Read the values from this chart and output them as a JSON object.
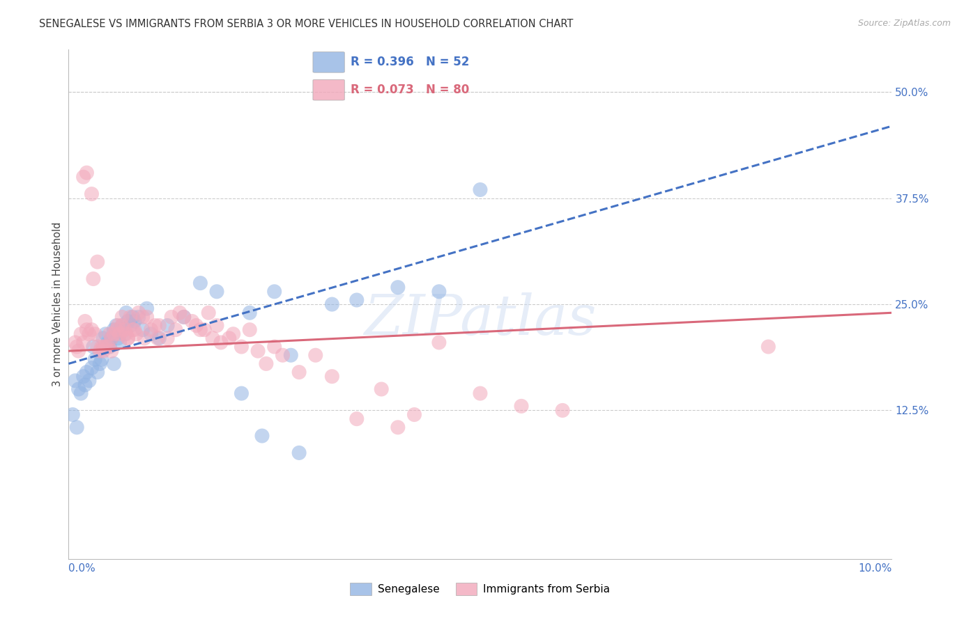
{
  "title": "SENEGALESE VS IMMIGRANTS FROM SERBIA 3 OR MORE VEHICLES IN HOUSEHOLD CORRELATION CHART",
  "source": "Source: ZipAtlas.com",
  "ylabel": "3 or more Vehicles in Household",
  "blue_label": "Senegalese",
  "pink_label": "Immigrants from Serbia",
  "blue_r": "R = 0.396",
  "blue_n": "N = 52",
  "pink_r": "R = 0.073",
  "pink_n": "N = 80",
  "blue_fill": "#92b4e3",
  "pink_fill": "#f2a8bb",
  "blue_line": "#4472c4",
  "pink_line": "#d9687a",
  "watermark_color": "#c8d8f0",
  "xmin": 0.0,
  "xmax": 10.0,
  "ymin": -5.0,
  "ymax": 55.0,
  "ytick_vals": [
    12.5,
    25.0,
    37.5,
    50.0
  ],
  "grid_color": "#cccccc",
  "background_color": "#ffffff",
  "blue_scatter_x": [
    0.08,
    0.12,
    0.15,
    0.18,
    0.2,
    0.22,
    0.25,
    0.28,
    0.3,
    0.32,
    0.35,
    0.38,
    0.4,
    0.42,
    0.45,
    0.48,
    0.5,
    0.52,
    0.55,
    0.58,
    0.6,
    0.62,
    0.65,
    0.68,
    0.7,
    0.72,
    0.75,
    0.78,
    0.8,
    0.85,
    0.9,
    0.95,
    1.0,
    1.1,
    1.2,
    1.4,
    1.6,
    1.8,
    2.2,
    2.5,
    2.7,
    3.2,
    3.5,
    4.0,
    4.5,
    5.0,
    2.1,
    2.35,
    2.8,
    0.05,
    0.1,
    0.55
  ],
  "blue_scatter_y": [
    16.0,
    15.0,
    14.5,
    16.5,
    15.5,
    17.0,
    16.0,
    17.5,
    20.0,
    18.5,
    17.0,
    18.0,
    18.5,
    21.0,
    21.5,
    20.5,
    20.0,
    21.0,
    22.0,
    22.5,
    21.0,
    20.5,
    22.5,
    21.5,
    24.0,
    23.0,
    22.5,
    23.5,
    23.0,
    23.5,
    22.0,
    24.5,
    21.5,
    21.0,
    22.5,
    23.5,
    27.5,
    26.5,
    24.0,
    26.5,
    19.0,
    25.0,
    25.5,
    27.0,
    26.5,
    38.5,
    14.5,
    9.5,
    7.5,
    12.0,
    10.5,
    18.0
  ],
  "pink_scatter_x": [
    0.08,
    0.1,
    0.12,
    0.15,
    0.18,
    0.2,
    0.22,
    0.25,
    0.28,
    0.3,
    0.32,
    0.35,
    0.38,
    0.4,
    0.42,
    0.45,
    0.48,
    0.5,
    0.52,
    0.55,
    0.58,
    0.6,
    0.62,
    0.65,
    0.68,
    0.7,
    0.72,
    0.75,
    0.78,
    0.8,
    0.85,
    0.9,
    0.95,
    1.0,
    1.05,
    1.1,
    1.2,
    1.3,
    1.4,
    1.5,
    1.6,
    1.7,
    1.8,
    2.0,
    2.2,
    2.5,
    3.0,
    3.5,
    4.0,
    4.5,
    5.0,
    8.5,
    0.18,
    0.22,
    0.28,
    1.25,
    1.35,
    1.55,
    1.65,
    1.75,
    1.85,
    1.95,
    2.1,
    2.3,
    2.4,
    2.6,
    2.8,
    3.2,
    3.8,
    4.2,
    5.5,
    6.0,
    0.42,
    0.52,
    0.72,
    0.82,
    0.92,
    1.08,
    0.35,
    0.65
  ],
  "pink_scatter_y": [
    20.5,
    20.0,
    19.5,
    21.5,
    20.5,
    23.0,
    22.0,
    21.5,
    22.0,
    28.0,
    21.5,
    20.0,
    19.5,
    20.0,
    20.0,
    20.0,
    20.0,
    21.5,
    21.0,
    21.5,
    22.0,
    22.5,
    21.5,
    23.5,
    22.0,
    21.5,
    21.0,
    23.5,
    22.0,
    22.0,
    24.0,
    23.5,
    23.5,
    22.0,
    22.5,
    22.5,
    21.0,
    22.0,
    23.5,
    23.0,
    22.0,
    24.0,
    22.5,
    21.5,
    22.0,
    20.0,
    19.0,
    11.5,
    10.5,
    20.5,
    14.5,
    20.0,
    40.0,
    40.5,
    38.0,
    23.5,
    24.0,
    22.5,
    22.0,
    21.0,
    20.5,
    21.0,
    20.0,
    19.5,
    18.0,
    19.0,
    17.0,
    16.5,
    15.0,
    12.0,
    13.0,
    12.5,
    19.5,
    19.5,
    21.0,
    21.5,
    21.0,
    21.0,
    30.0,
    22.5
  ],
  "blue_line_x0": 0.0,
  "blue_line_x1": 10.0,
  "blue_line_y0": 18.0,
  "blue_line_y1": 46.0,
  "pink_line_x0": 0.0,
  "pink_line_x1": 10.0,
  "pink_line_y0": 19.5,
  "pink_line_y1": 24.0
}
